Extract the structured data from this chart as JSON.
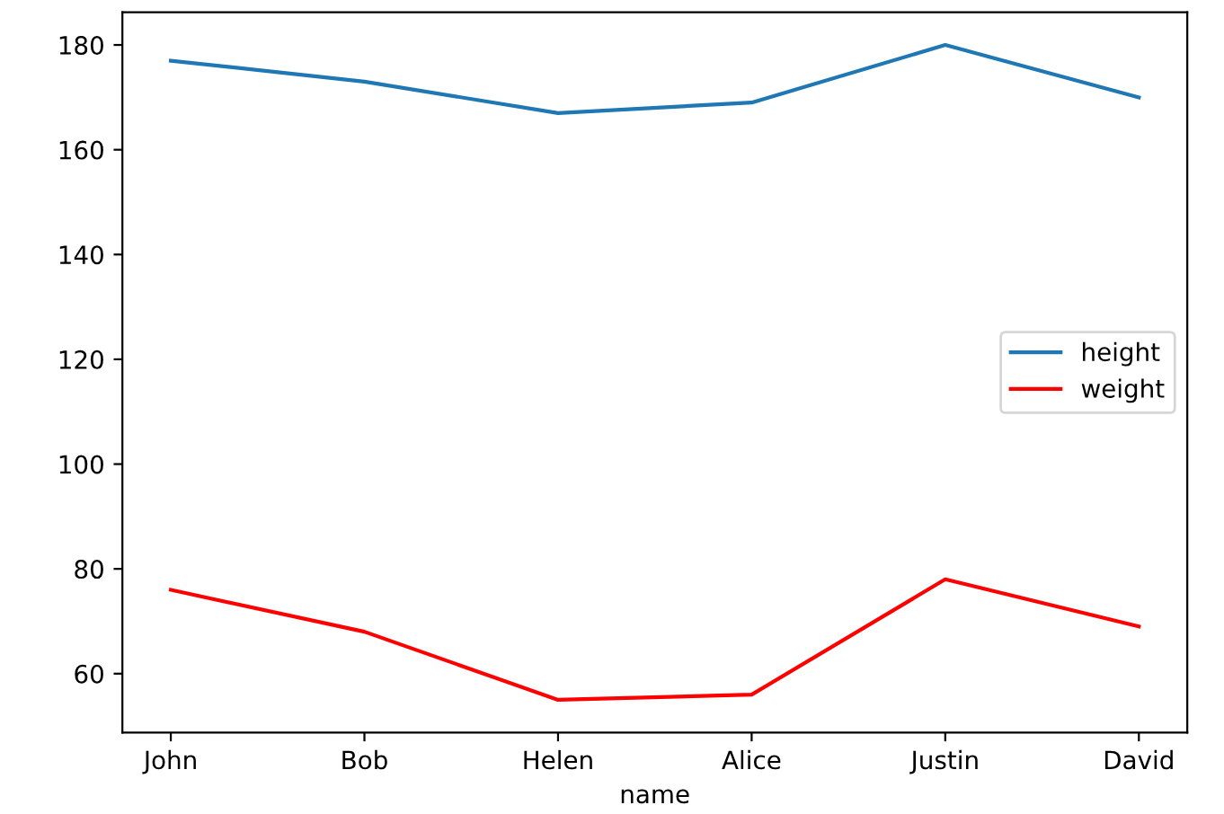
{
  "chart_data": {
    "type": "line",
    "xlabel": "name",
    "categories": [
      "John",
      "Bob",
      "Helen",
      "Alice",
      "Justin",
      "David"
    ],
    "series": [
      {
        "name": "height",
        "color": "#1f77b4",
        "values": [
          177,
          173,
          167,
          169,
          180,
          170
        ]
      },
      {
        "name": "weight",
        "color": "#ff0000",
        "values": [
          76,
          68,
          55,
          56,
          78,
          69
        ]
      }
    ],
    "ylim": [
      48.75,
      186.25
    ],
    "yticks": [
      60,
      80,
      100,
      120,
      140,
      160,
      180
    ],
    "legend": "center right",
    "grid": false
  }
}
